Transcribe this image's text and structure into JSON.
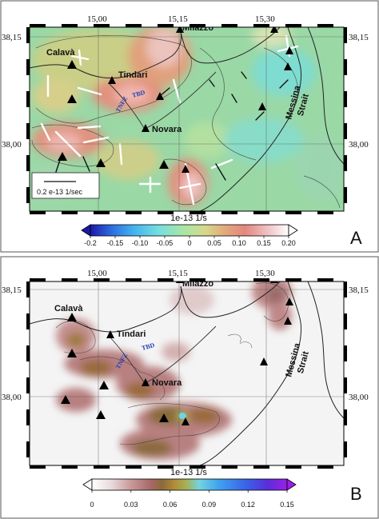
{
  "panels": [
    {
      "letter": "A",
      "x_ticks": [
        "15,00",
        "15,15",
        "15,30"
      ],
      "y_ticks": [
        "38,15",
        "38,00"
      ],
      "places": {
        "milazzo": "Milazzo",
        "calava": "Calavà",
        "tindari": "Tindari",
        "novara": "Novara",
        "messina_line1": "Messina",
        "messina_line2": "Strait",
        "tbd": "TBD",
        "tnfz": "TNFZ"
      },
      "scale_label": "0.2 e-13 1/sec",
      "colorbar": {
        "title": "1e-13 1/s",
        "ticks": [
          "-0.2",
          "-0.15",
          "-0.10",
          "-0.05",
          "0",
          "0.05",
          "0.10",
          "0.15",
          "0.20"
        ],
        "colors": [
          "#1a1aa8",
          "#2f6fe0",
          "#41b4f0",
          "#74dde0",
          "#a9e6a4",
          "#d7d98a",
          "#e3a97c",
          "#e3877e",
          "#f0c6c6",
          "#ffffff"
        ]
      }
    },
    {
      "letter": "B",
      "x_ticks": [
        "15,00",
        "15,15",
        "15,30"
      ],
      "y_ticks": [
        "38,15",
        "38,00"
      ],
      "places": {
        "milazzo": "Milazzo",
        "calava": "Calavà",
        "tindari": "Tindari",
        "novara": "Novara",
        "messina_line1": "Messina",
        "messina_line2": "Strait",
        "tbd": "TBD",
        "tnfz": "TNFZ"
      },
      "colorbar": {
        "title": "1e-13 1/s",
        "ticks": [
          "0",
          "0.03",
          "0.06",
          "0.09",
          "0.12",
          "0.15"
        ],
        "colors": [
          "#ffffff",
          "#e8dadc",
          "#c89a9a",
          "#a86868",
          "#8a6a3a",
          "#b28a3a",
          "#a6b050",
          "#73d3e0",
          "#3ea3ee",
          "#3a5ee8",
          "#5a2ed8",
          "#9a1ee8"
        ]
      }
    }
  ]
}
